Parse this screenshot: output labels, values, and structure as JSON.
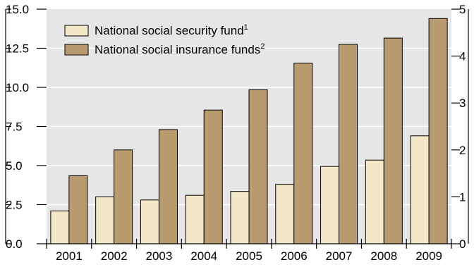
{
  "chart_data": {
    "type": "bar",
    "title": "",
    "xlabel": "",
    "ylabel": "",
    "categories": [
      "2001",
      "2002",
      "2003",
      "2004",
      "2005",
      "2006",
      "2007",
      "2008",
      "2009"
    ],
    "series": [
      {
        "name": "National social security fund",
        "footnote": "1",
        "color": "#f2e8c8",
        "values": [
          2.1,
          3.0,
          2.8,
          3.1,
          3.35,
          3.8,
          4.95,
          5.35,
          6.9
        ]
      },
      {
        "name": "National social insurance funds",
        "footnote": "2",
        "color": "#b89c70",
        "values": [
          4.35,
          6.0,
          7.3,
          8.55,
          9.85,
          11.55,
          12.75,
          13.15,
          14.4
        ]
      }
    ],
    "ylim": [
      0,
      15
    ],
    "y_ticks": [
      "0.0",
      "2.5",
      "5.0",
      "7.5",
      "10.0",
      "12.5",
      "15.0"
    ],
    "y2lim": [
      0,
      5
    ],
    "y2_ticks": [
      "0",
      "1",
      "2",
      "3",
      "4",
      "5"
    ],
    "grid": true,
    "legend_position": "top-left",
    "plot_background": "#e6e6e6",
    "grid_color": "#ffffff"
  }
}
